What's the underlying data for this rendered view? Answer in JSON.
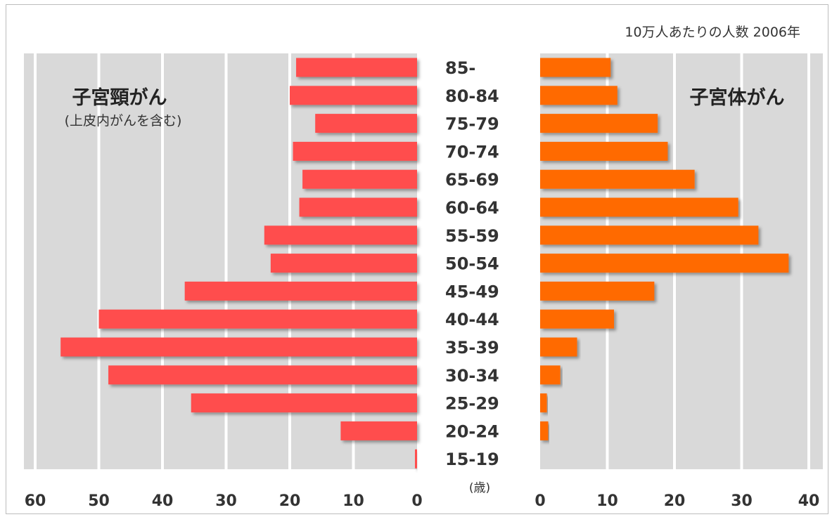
{
  "chart_data": {
    "type": "bar",
    "orientation": "horizontal",
    "layout": "butterfly",
    "note": "10万人あたりの人数 2006年",
    "categories": [
      "85-",
      "80-84",
      "75-79",
      "70-74",
      "65-69",
      "60-64",
      "55-59",
      "50-54",
      "45-49",
      "40-44",
      "35-39",
      "30-34",
      "25-29",
      "20-24",
      "15-19"
    ],
    "category_unit": "(歳)",
    "series": [
      {
        "name": "子宮頸がん",
        "subtitle": "(上皮内がんを含む)",
        "side": "left",
        "color": "#ff4d4d",
        "values": [
          19,
          20,
          16,
          19.5,
          18,
          18.5,
          24,
          23,
          36.5,
          50,
          56,
          48.5,
          35.5,
          12,
          0.3
        ]
      },
      {
        "name": "子宮体がん",
        "side": "right",
        "color": "#ff6a00",
        "values": [
          10.5,
          11.5,
          17.5,
          19,
          23,
          29.5,
          32.5,
          37,
          17,
          11,
          5.5,
          3,
          1,
          1.2,
          0
        ]
      }
    ],
    "left_axis": {
      "xlim": [
        0,
        60
      ],
      "ticks": [
        60,
        50,
        40,
        30,
        20,
        10,
        0
      ],
      "reversed": true
    },
    "right_axis": {
      "xlim": [
        0,
        40
      ],
      "ticks": [
        0,
        10,
        20,
        30,
        40
      ]
    },
    "grid": true
  }
}
